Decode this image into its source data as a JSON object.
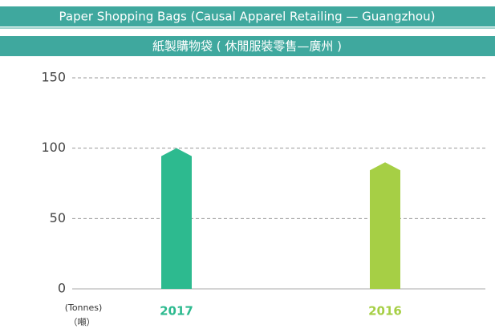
{
  "chart_data": {
    "type": "bar",
    "title": "Paper Shopping Bags (Causal Apparel Retailing — Guangzhou)",
    "subtitle": "紙製購物袋 ( 休閒服裝零售—廣州 )",
    "y_label": "(Tonnes)",
    "y_label_secondary": "（噸）",
    "categories": [
      "2017",
      "2016"
    ],
    "values": [
      100,
      90
    ],
    "colors": [
      "#2dba8f",
      "#a6cf45"
    ],
    "ylim": [
      0,
      150
    ],
    "yticks": [
      0,
      50,
      100,
      150
    ],
    "grid": true
  }
}
